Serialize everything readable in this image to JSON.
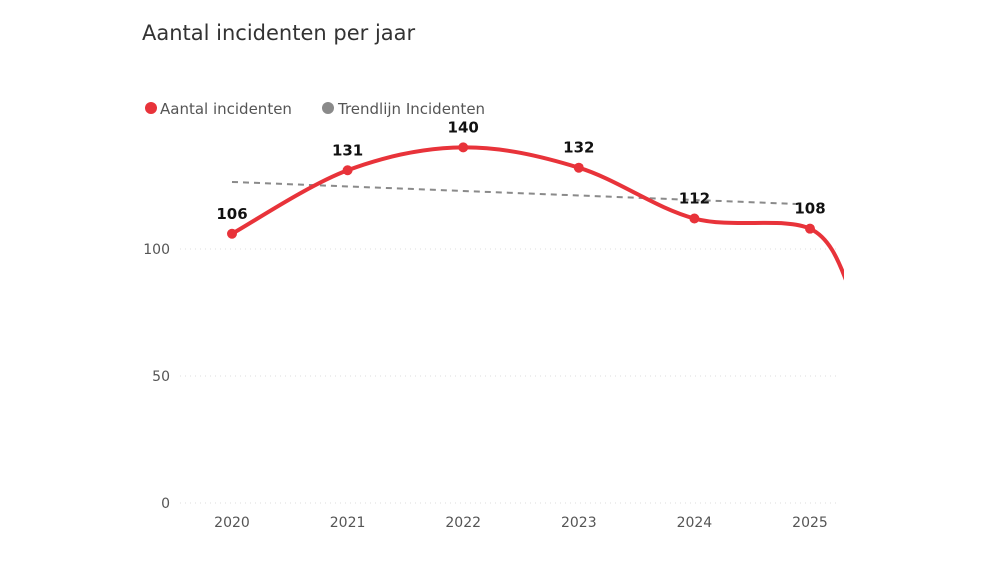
{
  "chart_data": {
    "type": "line",
    "title": "Aantal incidenten per jaar",
    "categories": [
      "2020",
      "2021",
      "2022",
      "2023",
      "2024",
      "2025"
    ],
    "series": [
      {
        "name": "Aantal incidenten",
        "values": [
          106,
          131,
          140,
          132,
          112,
          108
        ],
        "color": "#e8333a"
      },
      {
        "name": "Trendlijn Incidenten",
        "values": [
          126.4,
          124.7,
          123.0,
          121.2,
          119.5,
          117.7
        ],
        "color": "#8a8a8a",
        "style": "dashed"
      }
    ],
    "y_ticks": [
      "0",
      "50",
      "100"
    ],
    "ylim": [
      0,
      140
    ],
    "grid": "horizontal dotted",
    "legend": "top-left",
    "xlabel": "",
    "ylabel": ""
  }
}
